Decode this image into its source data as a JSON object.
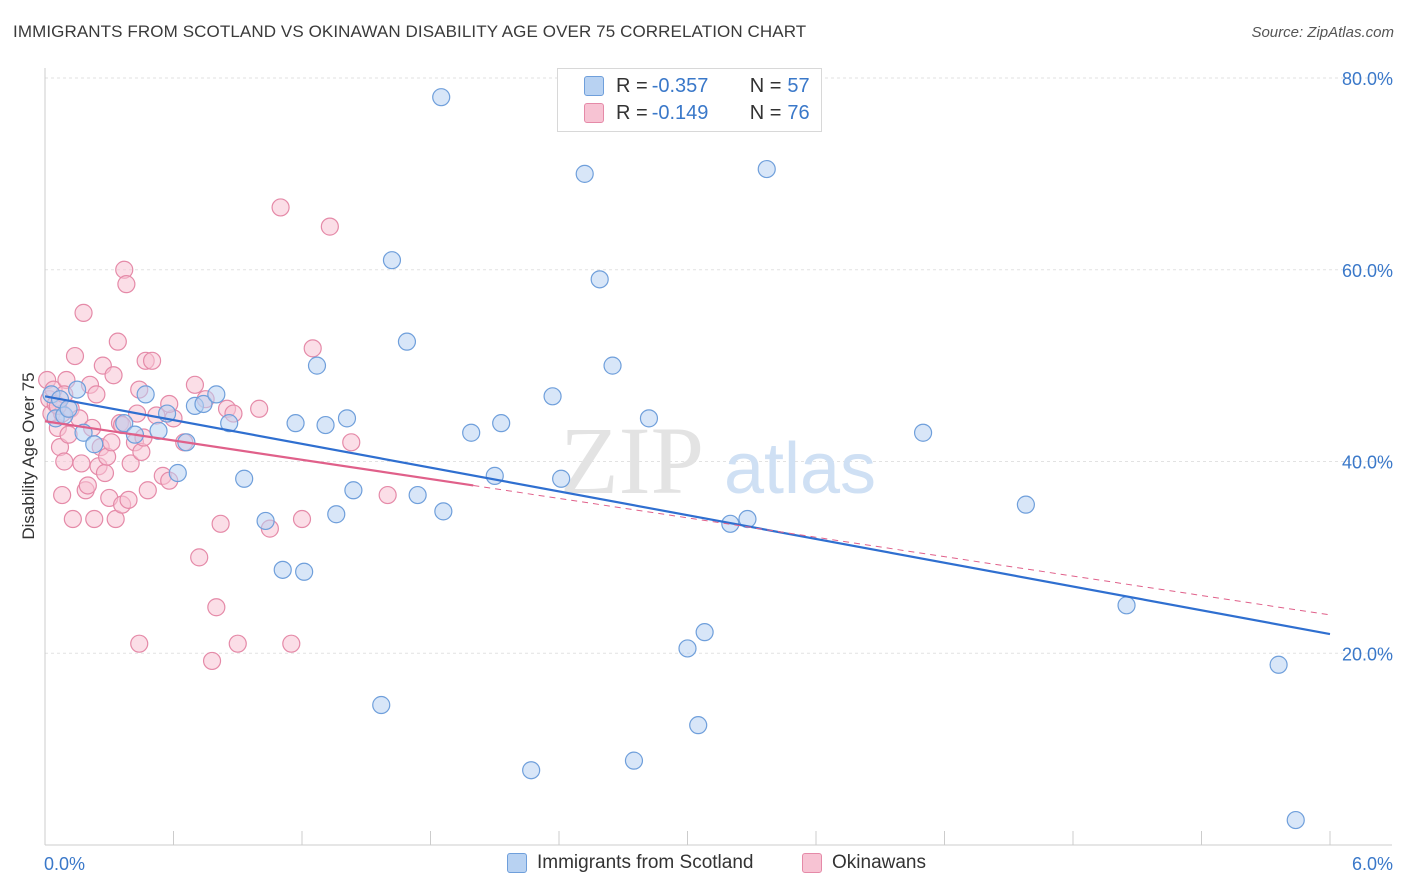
{
  "header": {
    "title": "IMMIGRANTS FROM SCOTLAND VS OKINAWAN DISABILITY AGE OVER 75 CORRELATION CHART",
    "source": "Source: ZipAtlas.com"
  },
  "watermark": {
    "zip": "ZIP",
    "atlas": "atlas"
  },
  "colors": {
    "scotland_fill": "#b8d2f2",
    "scotland_stroke": "#6f9fdb",
    "scotland_line": "#2f6fd0",
    "okinawa_fill": "#f7c3d3",
    "okinawa_stroke": "#e58aa8",
    "okinawa_line": "#e0608a",
    "axis_value": "#3a78c9"
  },
  "legend_top": [
    {
      "r_label": "R = ",
      "r_value": "-0.357",
      "n_label": "N = ",
      "n_value": "57"
    },
    {
      "r_label": "R = ",
      "r_value": "-0.149",
      "n_label": "N = ",
      "n_value": "76"
    }
  ],
  "legend_bottom": [
    "Immigrants from Scotland",
    "Okinawans"
  ],
  "chart_data": {
    "type": "scatter",
    "title": "IMMIGRANTS FROM SCOTLAND VS OKINAWAN DISABILITY AGE OVER 75 CORRELATION CHART",
    "xlabel": "",
    "ylabel": "Disability Age Over 75",
    "xlim": [
      0,
      6
    ],
    "ylim": [
      0,
      80
    ],
    "x_tick_labels": [
      "0.0%",
      "6.0%"
    ],
    "y_ticks": [
      20,
      40,
      60,
      80
    ],
    "y_tick_labels": [
      "20.0%",
      "40.0%",
      "60.0%",
      "80.0%"
    ],
    "grid": true,
    "legend_position": "top-center",
    "series": [
      {
        "name": "Immigrants from Scotland",
        "r": -0.357,
        "n": 57,
        "trend": {
          "x0": 0.0,
          "y0": 46.8,
          "x1": 6.0,
          "y1": 22.0,
          "style": "solid"
        },
        "points": [
          [
            0.03,
            47.0
          ],
          [
            0.05,
            44.5
          ],
          [
            0.07,
            46.5
          ],
          [
            0.09,
            44.8
          ],
          [
            0.11,
            45.5
          ],
          [
            0.18,
            43.0
          ],
          [
            0.23,
            41.8
          ],
          [
            0.37,
            44.0
          ],
          [
            0.42,
            42.8
          ],
          [
            0.57,
            45.0
          ],
          [
            0.62,
            38.8
          ],
          [
            0.66,
            42.0
          ],
          [
            0.7,
            45.8
          ],
          [
            0.74,
            46.0
          ],
          [
            0.8,
            47.0
          ],
          [
            0.86,
            44.0
          ],
          [
            0.93,
            38.2
          ],
          [
            1.03,
            33.8
          ],
          [
            1.11,
            28.7
          ],
          [
            1.17,
            44.0
          ],
          [
            1.21,
            28.5
          ],
          [
            1.27,
            50.0
          ],
          [
            1.31,
            43.8
          ],
          [
            1.36,
            34.5
          ],
          [
            1.41,
            44.5
          ],
          [
            1.44,
            37.0
          ],
          [
            1.57,
            14.6
          ],
          [
            1.62,
            61.0
          ],
          [
            1.69,
            52.5
          ],
          [
            1.74,
            36.5
          ],
          [
            1.85,
            78.0
          ],
          [
            1.86,
            34.8
          ],
          [
            1.99,
            43.0
          ],
          [
            2.1,
            38.5
          ],
          [
            2.13,
            44.0
          ],
          [
            2.27,
            7.8
          ],
          [
            2.37,
            46.8
          ],
          [
            2.41,
            38.2
          ],
          [
            2.52,
            70.0
          ],
          [
            2.59,
            59.0
          ],
          [
            2.65,
            50.0
          ],
          [
            2.75,
            8.8
          ],
          [
            2.82,
            44.5
          ],
          [
            3.0,
            20.5
          ],
          [
            3.05,
            12.5
          ],
          [
            3.08,
            22.2
          ],
          [
            3.2,
            33.5
          ],
          [
            3.28,
            34.0
          ],
          [
            3.37,
            70.5
          ],
          [
            4.1,
            43.0
          ],
          [
            4.58,
            35.5
          ],
          [
            5.05,
            25.0
          ],
          [
            5.76,
            18.8
          ],
          [
            5.84,
            2.6
          ],
          [
            0.15,
            47.5
          ],
          [
            0.53,
            43.2
          ],
          [
            0.47,
            47.0
          ]
        ]
      },
      {
        "name": "Okinawans",
        "r": -0.149,
        "n": 76,
        "trend": {
          "x0": 0.0,
          "y0": 44.2,
          "x1": 2.0,
          "y1": 37.5,
          "x2": 6.0,
          "y2": 24.0,
          "style": "solid-then-dashed"
        },
        "points": [
          [
            0.01,
            48.5
          ],
          [
            0.02,
            46.5
          ],
          [
            0.03,
            45.0
          ],
          [
            0.04,
            47.5
          ],
          [
            0.05,
            46.0
          ],
          [
            0.06,
            43.5
          ],
          [
            0.07,
            41.5
          ],
          [
            0.08,
            45.0
          ],
          [
            0.09,
            40.0
          ],
          [
            0.1,
            48.5
          ],
          [
            0.11,
            42.8
          ],
          [
            0.12,
            45.5
          ],
          [
            0.13,
            34.0
          ],
          [
            0.14,
            51.0
          ],
          [
            0.16,
            44.5
          ],
          [
            0.17,
            39.8
          ],
          [
            0.18,
            55.5
          ],
          [
            0.19,
            37.0
          ],
          [
            0.2,
            37.5
          ],
          [
            0.21,
            48.0
          ],
          [
            0.22,
            43.5
          ],
          [
            0.23,
            34.0
          ],
          [
            0.24,
            47.0
          ],
          [
            0.25,
            39.5
          ],
          [
            0.26,
            41.5
          ],
          [
            0.27,
            50.0
          ],
          [
            0.28,
            38.8
          ],
          [
            0.29,
            40.5
          ],
          [
            0.3,
            36.2
          ],
          [
            0.31,
            42.0
          ],
          [
            0.32,
            49.0
          ],
          [
            0.33,
            34.0
          ],
          [
            0.34,
            52.5
          ],
          [
            0.35,
            44.0
          ],
          [
            0.36,
            35.5
          ],
          [
            0.37,
            60.0
          ],
          [
            0.38,
            58.5
          ],
          [
            0.39,
            36.0
          ],
          [
            0.4,
            39.8
          ],
          [
            0.42,
            42.0
          ],
          [
            0.43,
            45.0
          ],
          [
            0.44,
            47.5
          ],
          [
            0.45,
            41.0
          ],
          [
            0.46,
            42.5
          ],
          [
            0.47,
            50.5
          ],
          [
            0.48,
            37.0
          ],
          [
            0.5,
            50.5
          ],
          [
            0.52,
            44.8
          ],
          [
            0.55,
            38.5
          ],
          [
            0.58,
            38.0
          ],
          [
            0.6,
            44.5
          ],
          [
            0.65,
            42.0
          ],
          [
            0.7,
            48.0
          ],
          [
            0.72,
            30.0
          ],
          [
            0.75,
            46.5
          ],
          [
            0.8,
            24.8
          ],
          [
            0.82,
            33.5
          ],
          [
            0.85,
            45.5
          ],
          [
            0.88,
            45.0
          ],
          [
            0.9,
            21.0
          ],
          [
            1.0,
            45.5
          ],
          [
            1.05,
            33.0
          ],
          [
            1.1,
            66.5
          ],
          [
            1.15,
            21.0
          ],
          [
            1.2,
            34.0
          ],
          [
            1.25,
            51.8
          ],
          [
            1.33,
            64.5
          ],
          [
            1.43,
            42.0
          ],
          [
            1.6,
            36.5
          ],
          [
            0.36,
            43.8
          ],
          [
            0.06,
            45.8
          ],
          [
            0.09,
            47.0
          ],
          [
            0.44,
            21.0
          ],
          [
            0.78,
            19.2
          ],
          [
            0.58,
            46.0
          ],
          [
            0.08,
            36.5
          ]
        ]
      }
    ]
  }
}
